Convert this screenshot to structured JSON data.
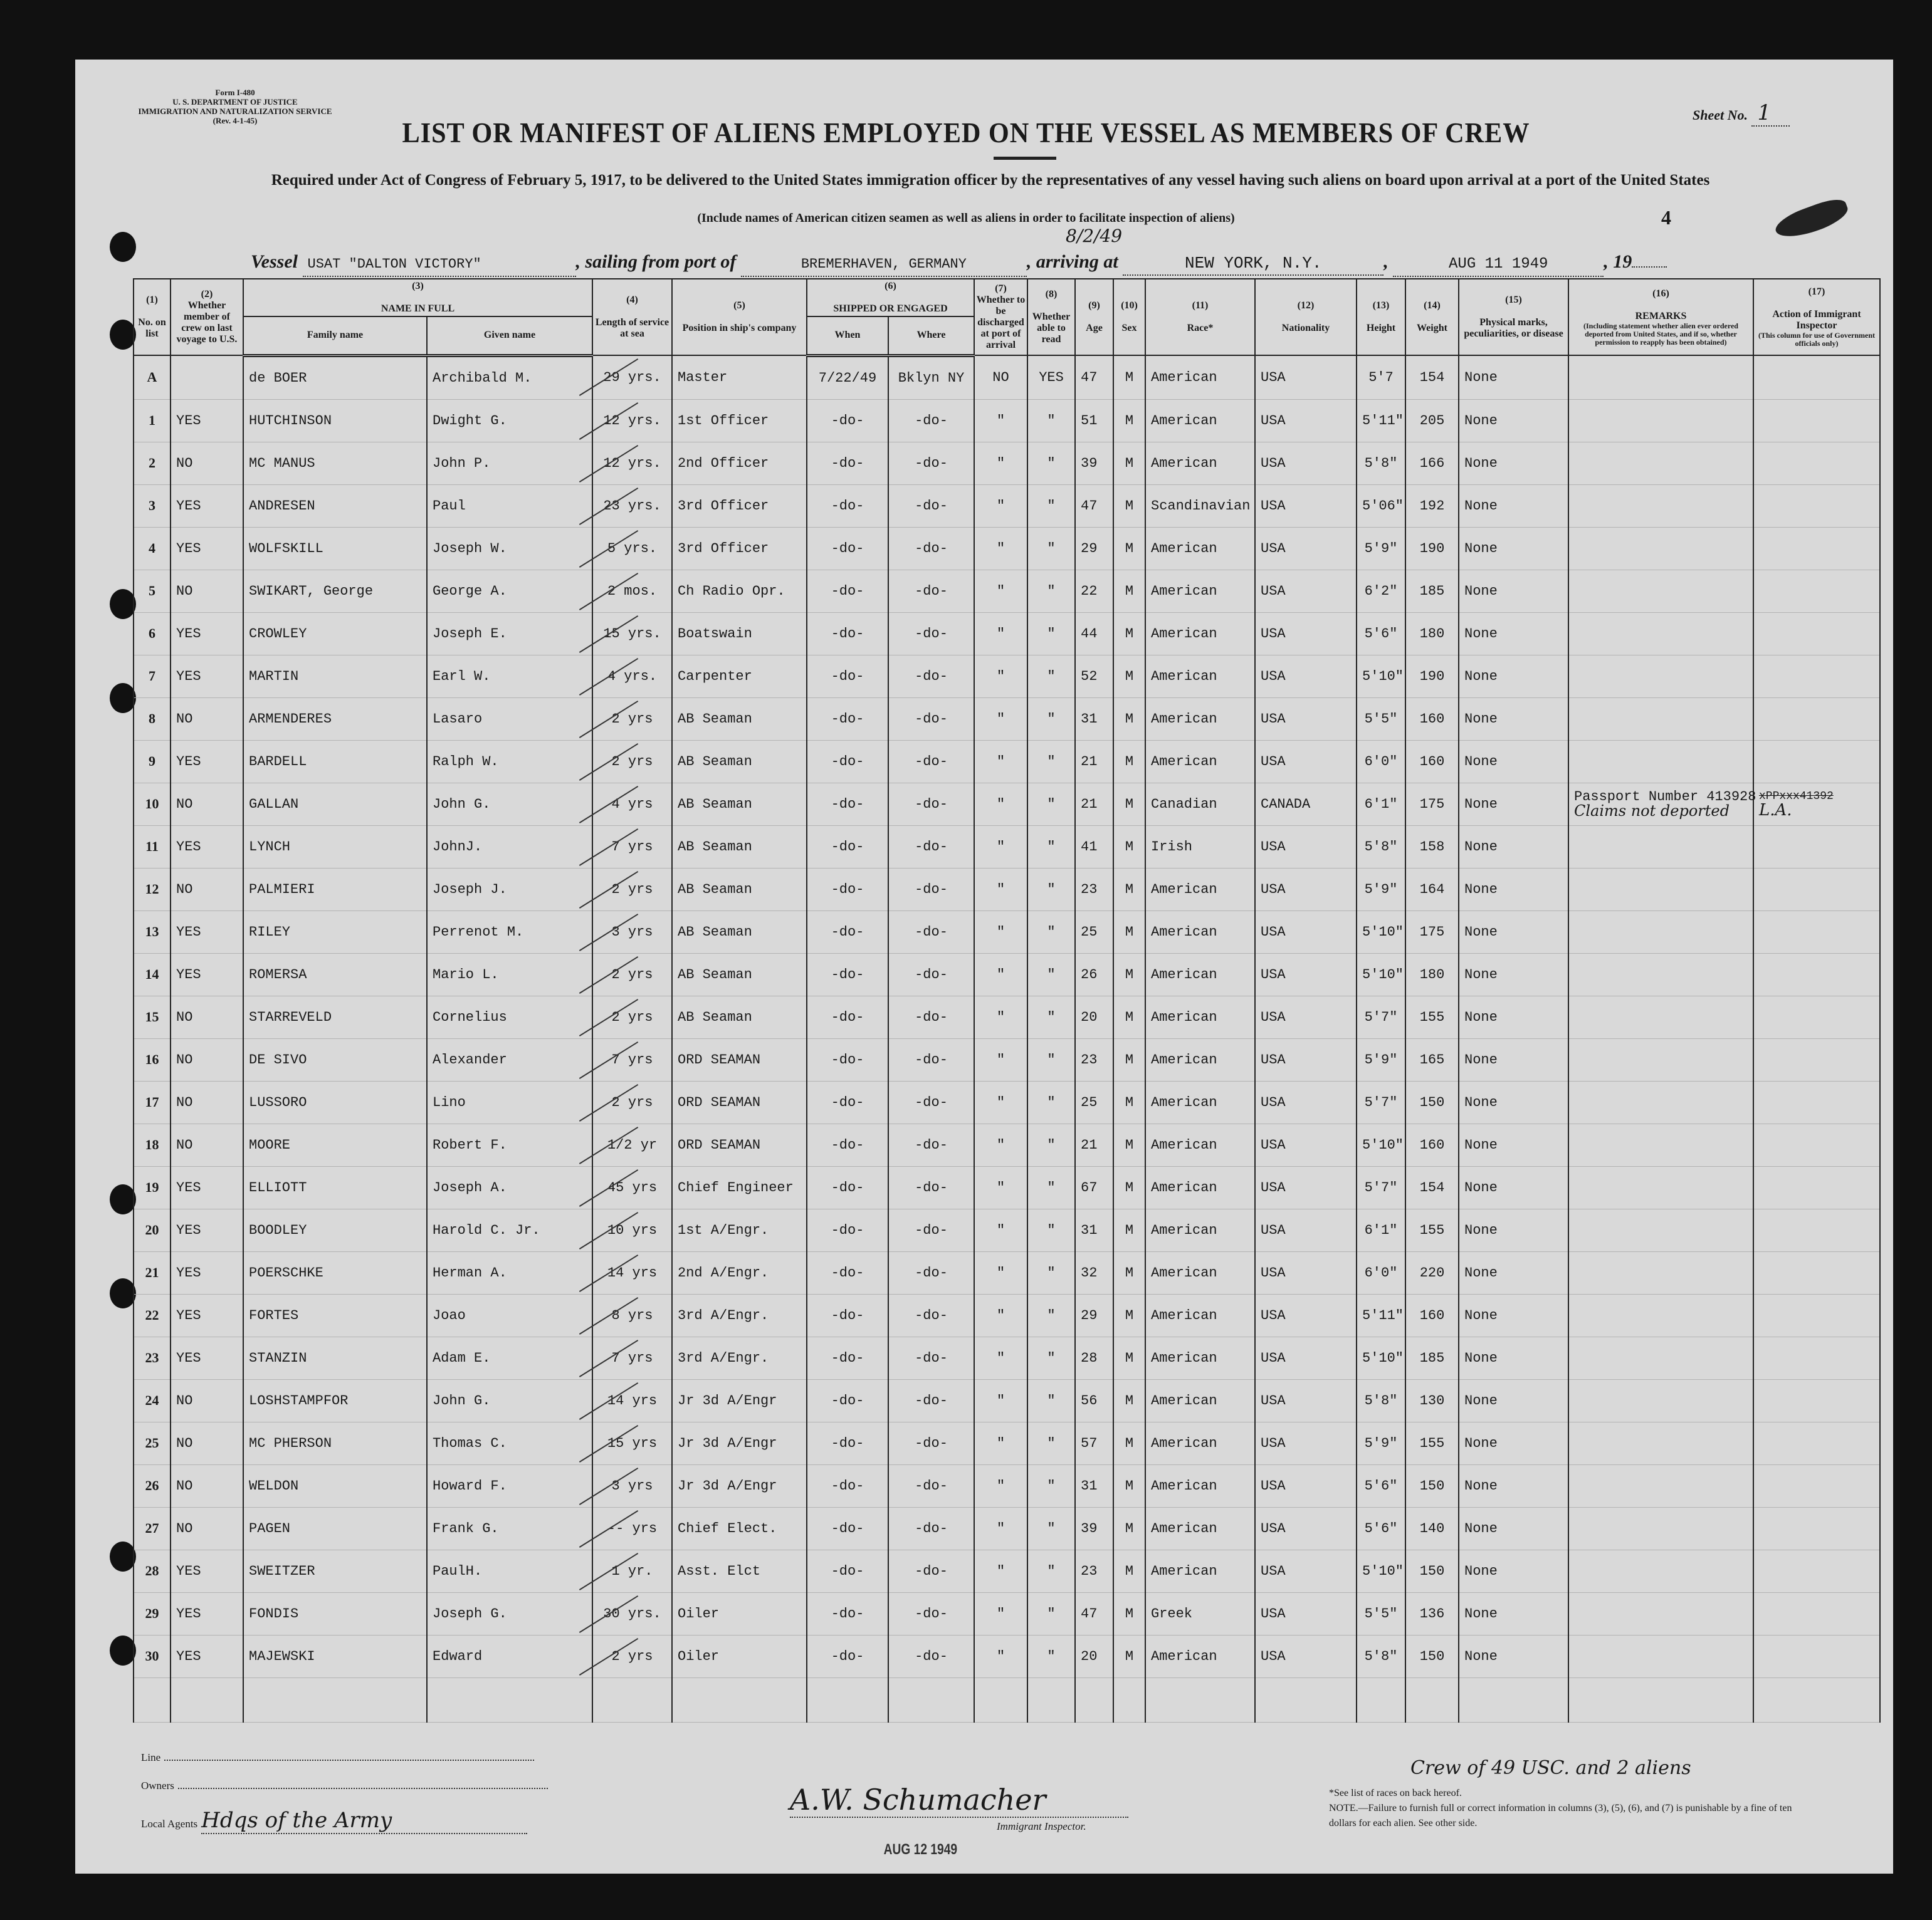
{
  "form": {
    "form_number": "Form I-480",
    "department": "U. S. DEPARTMENT OF JUSTICE",
    "service": "IMMIGRATION AND NATURALIZATION SERVICE",
    "revision": "(Rev. 4-1-45)",
    "sheet_label": "Sheet No.",
    "sheet_value": "1",
    "corner_number": "4"
  },
  "title": "LIST OR MANIFEST OF ALIENS EMPLOYED ON THE VESSEL AS MEMBERS OF CREW",
  "required_text": "Required under Act of Congress of February 5, 1917, to be delivered to the United States immigration officer by the representatives of any vessel having such aliens on board upon arrival at a port of the United States",
  "include_text": "(Include names of American citizen seamen as well as aliens in order to facilitate inspection of aliens)",
  "voyage": {
    "vessel_label": "Vessel",
    "vessel": "USAT \"DALTON VICTORY\"",
    "sailing_label": ", sailing from port of",
    "sailing_from": "BREMERHAVEN, GERMANY",
    "sailing_date_handwritten": "8/2/49",
    "arriving_label": ", arriving at",
    "arriving_at": "NEW YORK, N.Y.",
    "arrival_date": "AUG 11 1949",
    "year_label": ", 19"
  },
  "columns": {
    "numbers": [
      "(1)",
      "(2)",
      "(3)",
      "(4)",
      "(5)",
      "(6)",
      "(7)",
      "(8)",
      "(9)",
      "(10)",
      "(11)",
      "(12)",
      "(13)",
      "(14)",
      "(15)",
      "(16)",
      "(17)"
    ],
    "no_on_list": "No. on list",
    "previous_voyage": "Whether member of crew on last voyage to U.S.",
    "name_in_full": "NAME IN FULL",
    "family_name": "Family name",
    "given_name": "Given name",
    "length_service": "Length of service at sea",
    "position": "Position in ship's company",
    "shipped_engaged": "SHIPPED OR ENGAGED",
    "when": "When",
    "where": "Where",
    "discharged": "Whether to be discharged at port of arrival",
    "able_to_read": "Whether able to read",
    "age": "Age",
    "sex": "Sex",
    "race": "Race*",
    "nationality": "Nationality",
    "height": "Height",
    "weight": "Weight",
    "physical_marks": "Physical marks, peculiarities, or disease",
    "remarks": "REMARKS",
    "remarks_sub": "(Including statement whether alien ever ordered deported from United States, and if so, whether permission to reapply has been obtained)",
    "action": "Action of Immigrant Inspector",
    "action_sub": "(This column for use of Government officials only)"
  },
  "rows": [
    {
      "no": "A",
      "prev": "",
      "family": "de BOER",
      "given": "Archibald M.",
      "length": "29 yrs.",
      "position": "Master",
      "when": "7/22/49",
      "where": "Bklyn NY",
      "discharged": "NO",
      "read": "YES",
      "age": "47",
      "sex": "M",
      "race": "American",
      "nationality": "USA",
      "height": "5'7",
      "weight": "154",
      "marks": "None"
    },
    {
      "no": "1",
      "prev": "YES",
      "family": "HUTCHINSON",
      "given": "Dwight G.",
      "length": "12 yrs.",
      "position": "1st Officer",
      "when": "-do-",
      "where": "-do-",
      "discharged": "\"",
      "read": "\"",
      "age": "51",
      "sex": "M",
      "race": "American",
      "nationality": "USA",
      "height": "5'11\"",
      "weight": "205",
      "marks": "None"
    },
    {
      "no": "2",
      "prev": "NO",
      "family": "MC MANUS",
      "given": "John P.",
      "length": "12 yrs.",
      "position": "2nd Officer",
      "when": "-do-",
      "where": "-do-",
      "discharged": "\"",
      "read": "\"",
      "age": "39",
      "sex": "M",
      "race": "American",
      "nationality": "USA",
      "height": "5'8\"",
      "weight": "166",
      "marks": "None"
    },
    {
      "no": "3",
      "prev": "YES",
      "family": "ANDRESEN",
      "given": "Paul",
      "length": "23 yrs.",
      "position": "3rd Officer",
      "when": "-do-",
      "where": "-do-",
      "discharged": "\"",
      "read": "\"",
      "age": "47",
      "sex": "M",
      "race": "Scandinavian",
      "nationality": "USA",
      "height": "5'06\"",
      "weight": "192",
      "marks": "None"
    },
    {
      "no": "4",
      "prev": "YES",
      "family": "WOLFSKILL",
      "given": "Joseph W.",
      "length": "5 yrs.",
      "position": "3rd Officer",
      "when": "-do-",
      "where": "-do-",
      "discharged": "\"",
      "read": "\"",
      "age": "29",
      "sex": "M",
      "race": "American",
      "nationality": "USA",
      "height": "5'9\"",
      "weight": "190",
      "marks": "None"
    },
    {
      "no": "5",
      "prev": "NO",
      "family": "SWIKART, George",
      "given": "George A.",
      "length": "2 mos.",
      "position": "Ch Radio Opr.",
      "when": "-do-",
      "where": "-do-",
      "discharged": "\"",
      "read": "\"",
      "age": "22",
      "sex": "M",
      "race": "American",
      "nationality": "USA",
      "height": "6'2\"",
      "weight": "185",
      "marks": "None"
    },
    {
      "no": "6",
      "prev": "YES",
      "family": "CROWLEY",
      "given": "Joseph E.",
      "length": "15 yrs.",
      "position": "Boatswain",
      "when": "-do-",
      "where": "-do-",
      "discharged": "\"",
      "read": "\"",
      "age": "44",
      "sex": "M",
      "race": "American",
      "nationality": "USA",
      "height": "5'6\"",
      "weight": "180",
      "marks": "None"
    },
    {
      "no": "7",
      "prev": "YES",
      "family": "MARTIN",
      "given": "Earl W.",
      "length": "4 yrs.",
      "position": "Carpenter",
      "when": "-do-",
      "where": "-do-",
      "discharged": "\"",
      "read": "\"",
      "age": "52",
      "sex": "M",
      "race": "American",
      "nationality": "USA",
      "height": "5'10\"",
      "weight": "190",
      "marks": "None"
    },
    {
      "no": "8",
      "prev": "NO",
      "family": "ARMENDERES",
      "given": "Lasaro",
      "length": "2 yrs",
      "position": "AB Seaman",
      "when": "-do-",
      "where": "-do-",
      "discharged": "\"",
      "read": "\"",
      "age": "31",
      "sex": "M",
      "race": "American",
      "nationality": "USA",
      "height": "5'5\"",
      "weight": "160",
      "marks": "None"
    },
    {
      "no": "9",
      "prev": "YES",
      "family": "BARDELL",
      "given": "Ralph W.",
      "length": "2 yrs",
      "position": "AB Seaman",
      "when": "-do-",
      "where": "-do-",
      "discharged": "\"",
      "read": "\"",
      "age": "21",
      "sex": "M",
      "race": "American",
      "nationality": "USA",
      "height": "6'0\"",
      "weight": "160",
      "marks": "None"
    },
    {
      "no": "10",
      "prev": "NO",
      "family": "GALLAN",
      "given": "John G.",
      "length": "4 yrs",
      "position": "AB Seaman",
      "when": "-do-",
      "where": "-do-",
      "discharged": "\"",
      "read": "\"",
      "age": "21",
      "sex": "M",
      "race": "Canadian",
      "nationality": "CANADA",
      "height": "6'1\"",
      "weight": "175",
      "marks": "None",
      "remarks": "Passport Number 413928",
      "remarks_hand": "Claims not deported",
      "action_struck": "xPPxxx41392",
      "action_hand": "L.A."
    },
    {
      "no": "11",
      "prev": "YES",
      "family": "LYNCH",
      "given": "JohnJ.",
      "length": "7 yrs",
      "position": "AB Seaman",
      "when": "-do-",
      "where": "-do-",
      "discharged": "\"",
      "read": "\"",
      "age": "41",
      "sex": "M",
      "race": "Irish",
      "nationality": "USA",
      "height": "5'8\"",
      "weight": "158",
      "marks": "None"
    },
    {
      "no": "12",
      "prev": "NO",
      "family": "PALMIERI",
      "given": "Joseph J.",
      "length": "2 yrs",
      "position": "AB Seaman",
      "when": "-do-",
      "where": "-do-",
      "discharged": "\"",
      "read": "\"",
      "age": "23",
      "sex": "M",
      "race": "American",
      "nationality": "USA",
      "height": "5'9\"",
      "weight": "164",
      "marks": "None"
    },
    {
      "no": "13",
      "prev": "YES",
      "family": "RILEY",
      "given": "Perrenot M.",
      "length": "3 yrs",
      "position": "AB Seaman",
      "when": "-do-",
      "where": "-do-",
      "discharged": "\"",
      "read": "\"",
      "age": "25",
      "sex": "M",
      "race": "American",
      "nationality": "USA",
      "height": "5'10\"",
      "weight": "175",
      "marks": "None"
    },
    {
      "no": "14",
      "prev": "YES",
      "family": "ROMERSA",
      "given": "Mario L.",
      "length": "2 yrs",
      "position": "AB Seaman",
      "when": "-do-",
      "where": "-do-",
      "discharged": "\"",
      "read": "\"",
      "age": "26",
      "sex": "M",
      "race": "American",
      "nationality": "USA",
      "height": "5'10\"",
      "weight": "180",
      "marks": "None"
    },
    {
      "no": "15",
      "prev": "NO",
      "family": "STARREVELD",
      "given": "Cornelius",
      "length": "2 yrs",
      "position": "AB Seaman",
      "when": "-do-",
      "where": "-do-",
      "discharged": "\"",
      "read": "\"",
      "age": "20",
      "sex": "M",
      "race": "American",
      "nationality": "USA",
      "height": "5'7\"",
      "weight": "155",
      "marks": "None"
    },
    {
      "no": "16",
      "prev": "NO",
      "family": "DE SIVO",
      "given": "Alexander",
      "length": "7 yrs",
      "position": "ORD SEAMAN",
      "when": "-do-",
      "where": "-do-",
      "discharged": "\"",
      "read": "\"",
      "age": "23",
      "sex": "M",
      "race": "American",
      "nationality": "USA",
      "height": "5'9\"",
      "weight": "165",
      "marks": "None"
    },
    {
      "no": "17",
      "prev": "NO",
      "family": "LUSSORO",
      "given": "Lino",
      "length": "2 yrs",
      "position": "ORD SEAMAN",
      "when": "-do-",
      "where": "-do-",
      "discharged": "\"",
      "read": "\"",
      "age": "25",
      "sex": "M",
      "race": "American",
      "nationality": "USA",
      "height": "5'7\"",
      "weight": "150",
      "marks": "None"
    },
    {
      "no": "18",
      "prev": "NO",
      "family": "MOORE",
      "given": "Robert F.",
      "length": "1/2 yr",
      "position": "ORD SEAMAN",
      "when": "-do-",
      "where": "-do-",
      "discharged": "\"",
      "read": "\"",
      "age": "21",
      "sex": "M",
      "race": "American",
      "nationality": "USA",
      "height": "5'10\"",
      "weight": "160",
      "marks": "None"
    },
    {
      "no": "19",
      "prev": "YES",
      "family": "ELLIOTT",
      "given": "Joseph A.",
      "length": "45 yrs",
      "position": "Chief Engineer",
      "when": "-do-",
      "where": "-do-",
      "discharged": "\"",
      "read": "\"",
      "age": "67",
      "sex": "M",
      "race": "American",
      "nationality": "USA",
      "height": "5'7\"",
      "weight": "154",
      "marks": "None"
    },
    {
      "no": "20",
      "prev": "YES",
      "family": "BOODLEY",
      "given": "Harold C. Jr.",
      "length": "10 yrs",
      "position": "1st A/Engr.",
      "when": "-do-",
      "where": "-do-",
      "discharged": "\"",
      "read": "\"",
      "age": "31",
      "sex": "M",
      "race": "American",
      "nationality": "USA",
      "height": "6'1\"",
      "weight": "155",
      "marks": "None"
    },
    {
      "no": "21",
      "prev": "YES",
      "family": "POERSCHKE",
      "given": "Herman A.",
      "length": "14 yrs",
      "position": "2nd A/Engr.",
      "when": "-do-",
      "where": "-do-",
      "discharged": "\"",
      "read": "\"",
      "age": "32",
      "sex": "M",
      "race": "American",
      "nationality": "USA",
      "height": "6'0\"",
      "weight": "220",
      "marks": "None"
    },
    {
      "no": "22",
      "prev": "YES",
      "family": "FORTES",
      "given": "Joao",
      "length": "8 yrs",
      "position": "3rd A/Engr.",
      "when": "-do-",
      "where": "-do-",
      "discharged": "\"",
      "read": "\"",
      "age": "29",
      "sex": "M",
      "race": "American",
      "nationality": "USA",
      "height": "5'11\"",
      "weight": "160",
      "marks": "None"
    },
    {
      "no": "23",
      "prev": "YES",
      "family": "STANZIN",
      "given": "Adam E.",
      "length": "7 yrs",
      "position": "3rd A/Engr.",
      "when": "-do-",
      "where": "-do-",
      "discharged": "\"",
      "read": "\"",
      "age": "28",
      "sex": "M",
      "race": "American",
      "nationality": "USA",
      "height": "5'10\"",
      "weight": "185",
      "marks": "None"
    },
    {
      "no": "24",
      "prev": "NO",
      "family": "LOSHSTAMPFOR",
      "given": "John G.",
      "length": "14 yrs",
      "position": "Jr 3d A/Engr",
      "when": "-do-",
      "where": "-do-",
      "discharged": "\"",
      "read": "\"",
      "age": "56",
      "sex": "M",
      "race": "American",
      "nationality": "USA",
      "height": "5'8\"",
      "weight": "130",
      "marks": "None"
    },
    {
      "no": "25",
      "prev": "NO",
      "family": "MC PHERSON",
      "given": "Thomas C.",
      "length": "15 yrs",
      "position": "Jr 3d A/Engr",
      "when": "-do-",
      "where": "-do-",
      "discharged": "\"",
      "read": "\"",
      "age": "57",
      "sex": "M",
      "race": "American",
      "nationality": "USA",
      "height": "5'9\"",
      "weight": "155",
      "marks": "None"
    },
    {
      "no": "26",
      "prev": "NO",
      "family": "WELDON",
      "given": "Howard F.",
      "length": "3 yrs",
      "position": "Jr 3d A/Engr",
      "when": "-do-",
      "where": "-do-",
      "discharged": "\"",
      "read": "\"",
      "age": "31",
      "sex": "M",
      "race": "American",
      "nationality": "USA",
      "height": "5'6\"",
      "weight": "150",
      "marks": "None"
    },
    {
      "no": "27",
      "prev": "NO",
      "family": "PAGEN",
      "given": "Frank G.",
      "length": "-- yrs",
      "position": "Chief Elect.",
      "when": "-do-",
      "where": "-do-",
      "discharged": "\"",
      "read": "\"",
      "age": "39",
      "sex": "M",
      "race": "American",
      "nationality": "USA",
      "height": "5'6\"",
      "weight": "140",
      "marks": "None"
    },
    {
      "no": "28",
      "prev": "YES",
      "family": "SWEITZER",
      "given": "PaulH.",
      "length": "1 yr.",
      "position": "Asst. Elct",
      "when": "-do-",
      "where": "-do-",
      "discharged": "\"",
      "read": "\"",
      "age": "23",
      "sex": "M",
      "race": "American",
      "nationality": "USA",
      "height": "5'10\"",
      "weight": "150",
      "marks": "None"
    },
    {
      "no": "29",
      "prev": "YES",
      "family": "FONDIS",
      "given": "Joseph G.",
      "length": "30 yrs.",
      "position": "Oiler",
      "when": "-do-",
      "where": "-do-",
      "discharged": "\"",
      "read": "\"",
      "age": "47",
      "sex": "M",
      "race": "Greek",
      "nationality": "USA",
      "height": "5'5\"",
      "weight": "136",
      "marks": "None"
    },
    {
      "no": "30",
      "prev": "YES",
      "family": "MAJEWSKI",
      "given": "Edward",
      "length": "2 yrs",
      "position": "Oiler",
      "when": "-do-",
      "where": "-do-",
      "discharged": "\"",
      "read": "\"",
      "age": "20",
      "sex": "M",
      "race": "American",
      "nationality": "USA",
      "height": "5'8\"",
      "weight": "150",
      "marks": "None"
    }
  ],
  "footer": {
    "line_label": "Line",
    "owners_label": "Owners",
    "agents_label": "Local Agents",
    "agents_value": "Hdqs of the Army",
    "signature": "A.W. Schumacher",
    "inspector_label": "Immigrant Inspector.",
    "stamp_date": "AUG 12 1949",
    "crew_note": "Crew of 49 USC. and 2 aliens",
    "races_note": "*See list of races on back hereof.",
    "penalty_note": "NOTE.—Failure to furnish full or correct information in columns (3), (5), (6), and (7) is punishable by a fine of ten dollars for each alien.  See other side."
  }
}
